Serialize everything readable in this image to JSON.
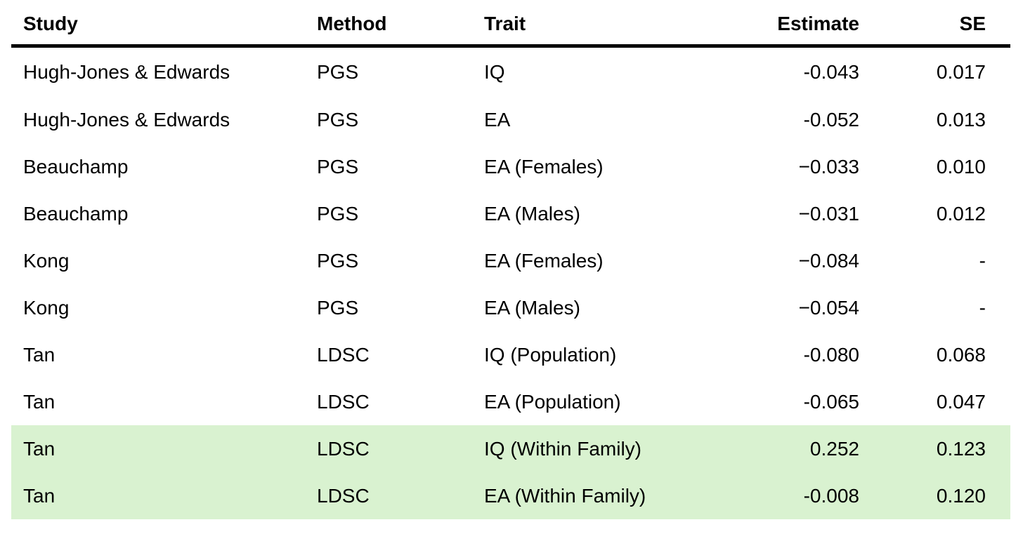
{
  "table": {
    "headers": {
      "study": "Study",
      "method": "Method",
      "trait": "Trait",
      "estimate": "Estimate",
      "se": "SE"
    },
    "highlight_color": "#d9f2d0",
    "rows": [
      {
        "study": "Hugh-Jones & Edwards",
        "method": "PGS",
        "trait": "IQ",
        "estimate": "-0.043",
        "se": "0.017",
        "highlighted": false
      },
      {
        "study": "Hugh-Jones & Edwards",
        "method": "PGS",
        "trait": "EA",
        "estimate": "-0.052",
        "se": "0.013",
        "highlighted": false
      },
      {
        "study": "Beauchamp",
        "method": "PGS",
        "trait": "EA (Females)",
        "estimate": "−0.033",
        "se": "0.010",
        "highlighted": false
      },
      {
        "study": "Beauchamp",
        "method": "PGS",
        "trait": "EA (Males)",
        "estimate": "−0.031",
        "se": "0.012",
        "highlighted": false
      },
      {
        "study": "Kong",
        "method": "PGS",
        "trait": "EA (Females)",
        "estimate": "−0.084",
        "se": "-",
        "highlighted": false
      },
      {
        "study": "Kong",
        "method": "PGS",
        "trait": "EA (Males)",
        "estimate": "−0.054",
        "se": "-",
        "highlighted": false
      },
      {
        "study": "Tan",
        "method": "LDSC",
        "trait": "IQ (Population)",
        "estimate": "-0.080",
        "se": "0.068",
        "highlighted": false
      },
      {
        "study": "Tan",
        "method": "LDSC",
        "trait": "EA (Population)",
        "estimate": "-0.065",
        "se": "0.047",
        "highlighted": false
      },
      {
        "study": "Tan",
        "method": "LDSC",
        "trait": "IQ (Within Family)",
        "estimate": "0.252",
        "se": "0.123",
        "highlighted": true
      },
      {
        "study": "Tan",
        "method": "LDSC",
        "trait": "EA (Within Family)",
        "estimate": "-0.008",
        "se": "0.120",
        "highlighted": true
      }
    ]
  }
}
